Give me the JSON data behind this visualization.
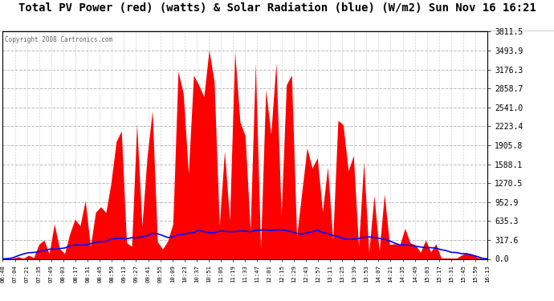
{
  "title": "Total PV Power (red) (watts) & Solar Radiation (blue) (W/m2) Sun Nov 16 16:21",
  "copyright": "Copyright 2008 Cartronics.com",
  "ymax": 3811.5,
  "yticks": [
    0.0,
    317.6,
    635.3,
    952.9,
    1270.5,
    1588.1,
    1905.8,
    2223.4,
    2541.0,
    2858.7,
    3176.3,
    3493.9,
    3811.5
  ],
  "xtick_labels": [
    "06:48",
    "07:04",
    "07:21",
    "07:35",
    "07:49",
    "08:03",
    "08:17",
    "08:31",
    "08:45",
    "08:59",
    "09:13",
    "09:27",
    "09:41",
    "09:55",
    "10:09",
    "10:23",
    "10:37",
    "10:51",
    "11:05",
    "11:19",
    "11:33",
    "11:47",
    "12:01",
    "12:15",
    "12:29",
    "12:43",
    "12:57",
    "13:11",
    "13:25",
    "13:39",
    "13:53",
    "14:07",
    "14:21",
    "14:35",
    "14:49",
    "15:03",
    "15:17",
    "15:31",
    "15:45",
    "15:59",
    "16:13"
  ],
  "bg_color": "#ffffff",
  "plot_bg": "#ffffff",
  "red_color": "#ff0000",
  "blue_color": "#0000ff",
  "grid_color": "#aaaaaa",
  "text_color": "#000000",
  "title_color": "#000000",
  "copyright_color": "#666666"
}
